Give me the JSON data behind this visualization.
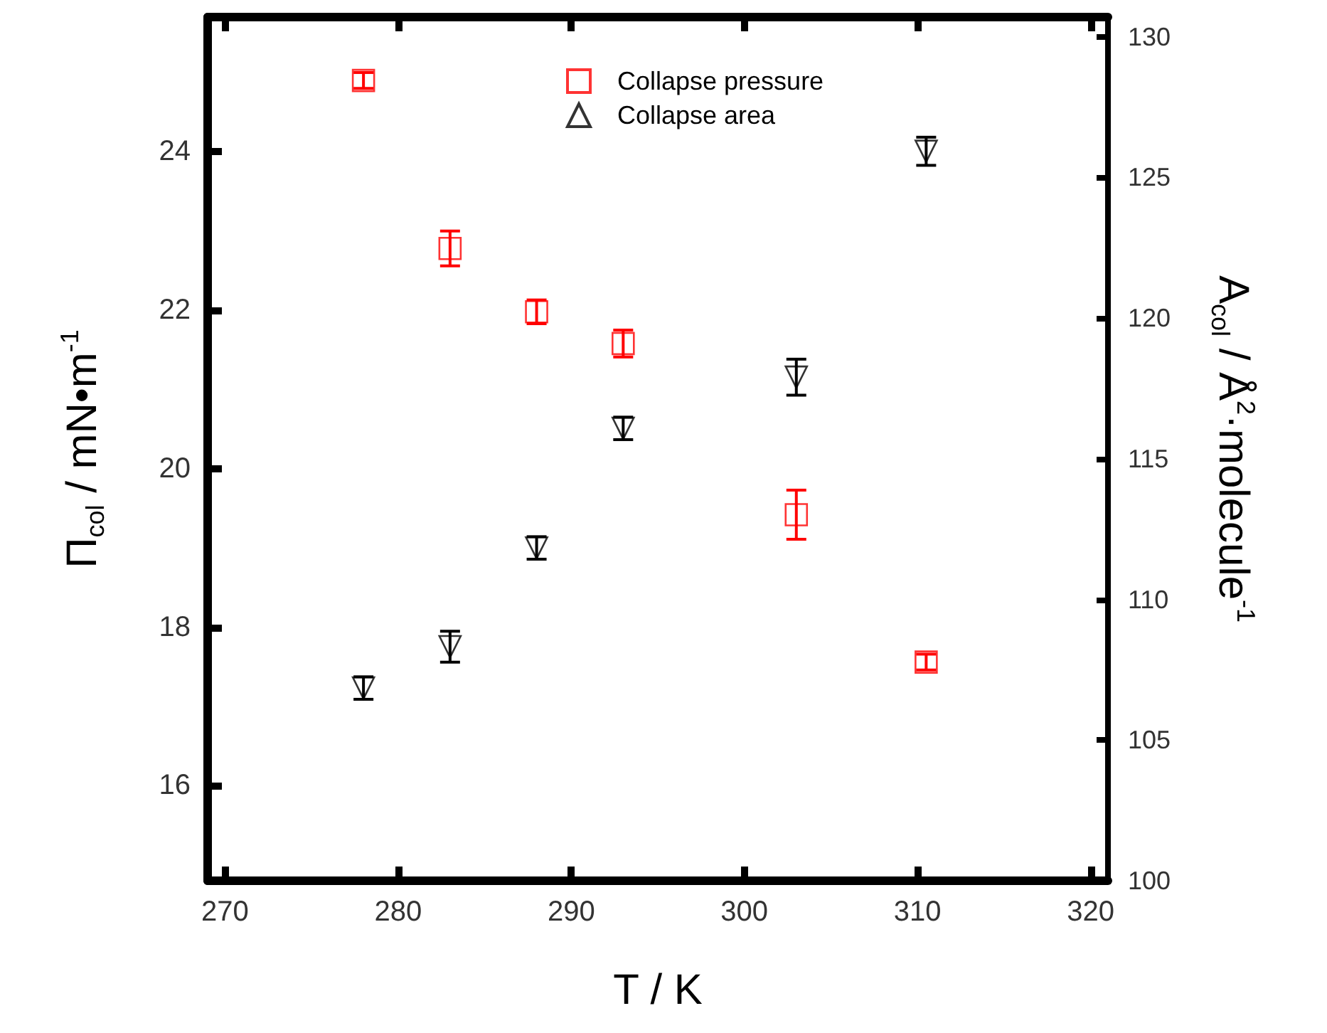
{
  "chart_data": {
    "type": "scatter",
    "xlabel": "T / K",
    "ylabel": "Π$_{col}$ / mN•m$^{-1}$",
    "y2label": "A$_{col}$ / Å$^{2}$·molecule$^{-1}$",
    "xlim": [
      269,
      321
    ],
    "xticks": [
      270,
      280,
      290,
      300,
      310,
      320
    ],
    "ylim": [
      14.8,
      25.7
    ],
    "yticks": [
      16,
      18,
      20,
      22,
      24
    ],
    "y2lim": [
      100,
      130.7
    ],
    "y2ticks": [
      100,
      105,
      110,
      115,
      120,
      125,
      130
    ],
    "legend": "top",
    "grid": false,
    "series": [
      {
        "name": "Collapse pressure",
        "color": "#ff0000",
        "marker": "square",
        "x": [
          278,
          283,
          288,
          293,
          303,
          310.5
        ],
        "values": [
          24.9,
          22.78,
          21.98,
          21.58,
          19.42,
          17.56
        ],
        "errors": [
          0.1,
          0.22,
          0.15,
          0.17,
          0.31,
          0.1
        ]
      },
      {
        "name": "Collapse area",
        "color": "#000000",
        "marker": "triangle",
        "axis": "y2",
        "x": [
          278,
          283,
          288,
          293,
          303,
          310.5
        ],
        "values": [
          106.85,
          108.32,
          111.83,
          116.08,
          117.9,
          125.93
        ],
        "errors": [
          0.4,
          0.55,
          0.4,
          0.4,
          0.64,
          0.5
        ]
      }
    ]
  }
}
